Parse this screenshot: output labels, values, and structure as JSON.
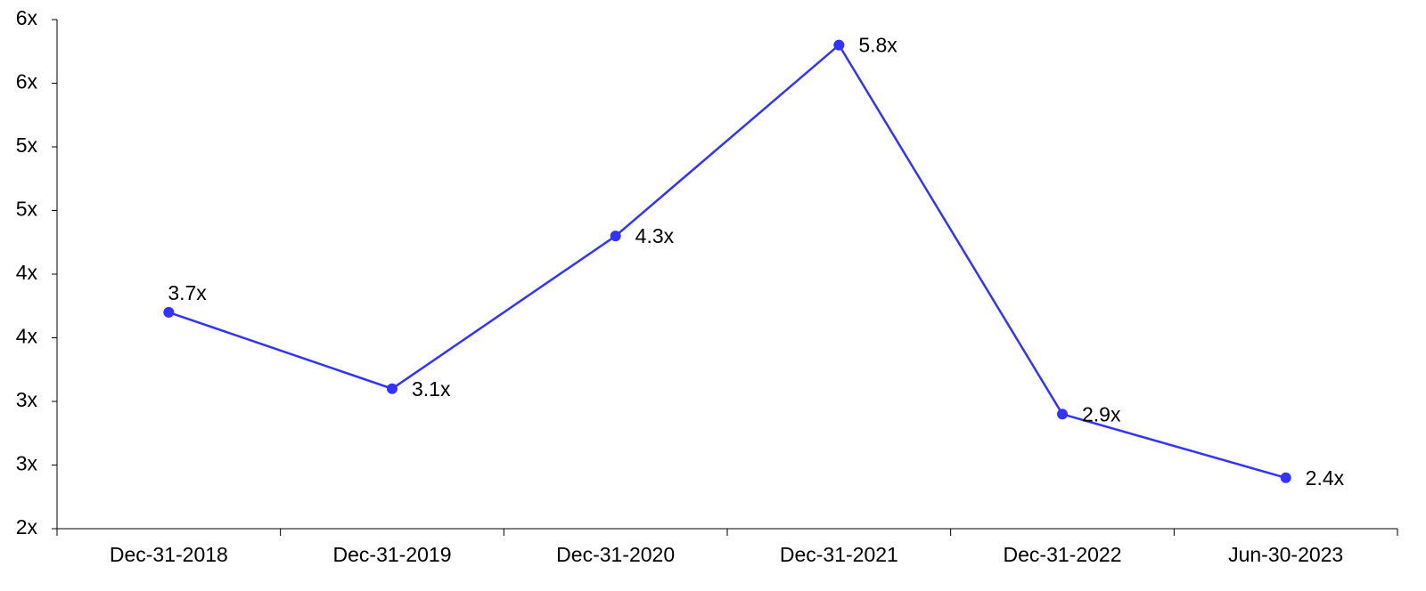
{
  "chart_data": {
    "type": "line",
    "categories": [
      "Dec-31-2018",
      "Dec-31-2019",
      "Dec-31-2020",
      "Dec-31-2021",
      "Dec-31-2022",
      "Jun-30-2023"
    ],
    "series": [
      {
        "color": "#3333ff",
        "values": [
          3.7,
          3.1,
          4.3,
          5.8,
          2.9,
          2.4
        ],
        "value_labels": [
          "3.7x",
          "3.1x",
          "4.3x",
          "5.8x",
          "2.9x",
          "2.4x"
        ]
      }
    ],
    "ylim": [
      2,
      6
    ],
    "yticks": [
      {
        "value": 2,
        "label": "2x"
      },
      {
        "value": 2.5,
        "label": "3x"
      },
      {
        "value": 3,
        "label": "3x"
      },
      {
        "value": 3.5,
        "label": "4x"
      },
      {
        "value": 4,
        "label": "4x"
      },
      {
        "value": 4.5,
        "label": "5x"
      },
      {
        "value": 5,
        "label": "5x"
      },
      {
        "value": 5.5,
        "label": "6x"
      },
      {
        "value": 6,
        "label": "6x"
      }
    ],
    "grid": false
  }
}
